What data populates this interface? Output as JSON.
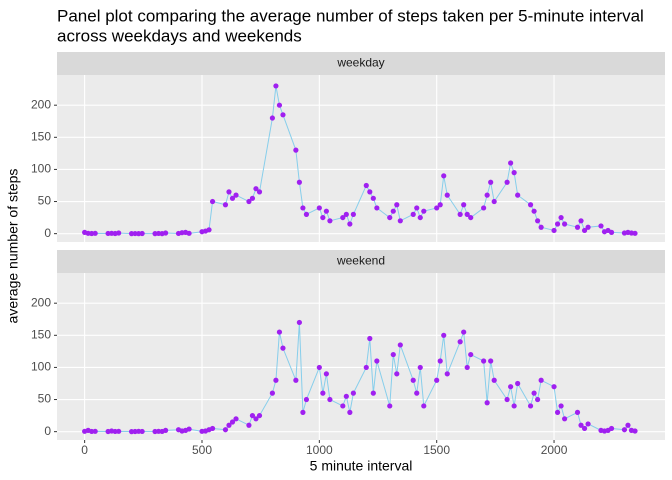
{
  "chart_data": {
    "type": "line",
    "title": [
      "Panel plot comparing the average number of steps taken per 5-minute interval",
      "across weekdays and weekends"
    ],
    "x_label": "5 minute interval",
    "y_label": "average number of steps",
    "x": [
      0,
      15,
      30,
      45,
      100,
      115,
      130,
      145,
      200,
      215,
      230,
      245,
      300,
      315,
      330,
      345,
      400,
      415,
      430,
      445,
      500,
      515,
      530,
      545,
      600,
      615,
      630,
      645,
      700,
      715,
      730,
      745,
      800,
      815,
      830,
      845,
      900,
      915,
      930,
      945,
      1000,
      1015,
      1030,
      1045,
      1100,
      1115,
      1130,
      1145,
      1200,
      1215,
      1230,
      1245,
      1300,
      1315,
      1330,
      1345,
      1400,
      1415,
      1430,
      1445,
      1500,
      1515,
      1530,
      1545,
      1600,
      1615,
      1630,
      1645,
      1700,
      1715,
      1730,
      1745,
      1800,
      1815,
      1830,
      1845,
      1900,
      1915,
      1930,
      1945,
      2000,
      2015,
      2030,
      2045,
      2100,
      2115,
      2130,
      2145,
      2200,
      2215,
      2230,
      2245,
      2300,
      2315,
      2330,
      2345
    ],
    "series": [
      {
        "name": "weekday",
        "color": "#a020f0",
        "line_color": "#87ceeb",
        "values": [
          2,
          0.5,
          0.2,
          0.5,
          0.3,
          0.5,
          0.2,
          1,
          0,
          0.1,
          0,
          0.2,
          0,
          0.3,
          0,
          1,
          0.3,
          1.5,
          2,
          0.5,
          3,
          4,
          6,
          50,
          45,
          65,
          55,
          60,
          50,
          55,
          70,
          65,
          180,
          230,
          200,
          185,
          130,
          80,
          40,
          30,
          40,
          25,
          35,
          20,
          25,
          30,
          15,
          30,
          75,
          65,
          55,
          40,
          25,
          35,
          45,
          20,
          30,
          40,
          25,
          35,
          40,
          45,
          90,
          60,
          30,
          45,
          30,
          25,
          40,
          60,
          80,
          50,
          80,
          110,
          95,
          60,
          45,
          35,
          20,
          10,
          5,
          15,
          25,
          15,
          10,
          20,
          5,
          10,
          12,
          3,
          5,
          2,
          1,
          2,
          1,
          0.5
        ]
      },
      {
        "name": "weekend",
        "color": "#a020f0",
        "line_color": "#87ceeb",
        "values": [
          0.5,
          2,
          0.3,
          0.5,
          0.2,
          1,
          0.3,
          0.5,
          0,
          0.2,
          0.5,
          0.3,
          0.2,
          0.5,
          0.3,
          2,
          3,
          1,
          2,
          4,
          0.5,
          1,
          3,
          5,
          3,
          10,
          15,
          20,
          10,
          25,
          20,
          25,
          60,
          80,
          155,
          130,
          80,
          170,
          30,
          50,
          100,
          60,
          90,
          50,
          40,
          55,
          30,
          60,
          100,
          145,
          60,
          110,
          40,
          120,
          90,
          135,
          80,
          60,
          100,
          40,
          80,
          110,
          150,
          90,
          140,
          155,
          100,
          120,
          110,
          45,
          110,
          80,
          50,
          70,
          40,
          75,
          40,
          60,
          50,
          80,
          70,
          30,
          40,
          20,
          30,
          10,
          5,
          12,
          2,
          1,
          2,
          5,
          3,
          10,
          2,
          1
        ]
      }
    ],
    "xlim": [
      -117.75,
      2472.75
    ],
    "ylim": [
      -13,
      247
    ],
    "xticks": [
      0,
      500,
      1000,
      1500,
      2000
    ],
    "yticks": [
      0,
      50,
      100,
      150,
      200
    ],
    "grid": true
  }
}
